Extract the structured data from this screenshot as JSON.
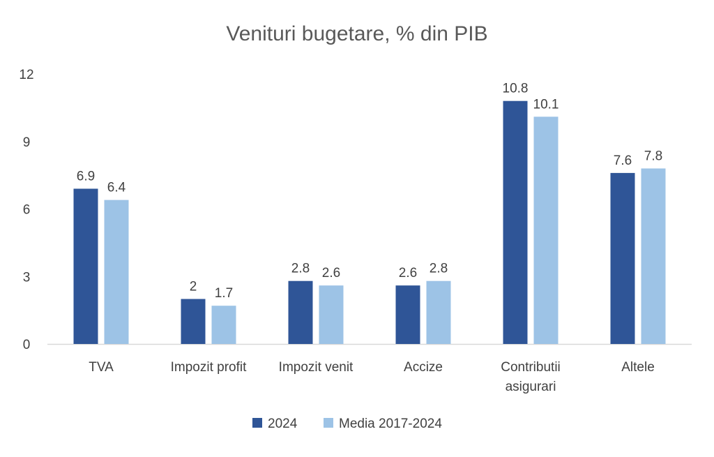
{
  "chart_data": {
    "type": "bar",
    "title": "Venituri bugetare, % din PIB",
    "categories": [
      [
        "TVA"
      ],
      [
        "Impozit profit"
      ],
      [
        "Impozit venit"
      ],
      [
        "Accize"
      ],
      [
        "Contributii",
        "asigurari"
      ],
      [
        "Altele"
      ]
    ],
    "series": [
      {
        "name": "2024",
        "color": "#2F5597",
        "values": [
          6.9,
          2,
          2.8,
          2.6,
          10.8,
          7.6
        ],
        "labels": [
          "6.9",
          "2",
          "2.8",
          "2.6",
          "10.8",
          "7.6"
        ]
      },
      {
        "name": "Media 2017-2024",
        "color": "#9DC3E6",
        "values": [
          6.4,
          1.7,
          2.6,
          2.8,
          10.1,
          7.8
        ],
        "labels": [
          "6.4",
          "1.7",
          "2.6",
          "2.8",
          "10.1",
          "7.8"
        ]
      }
    ],
    "ylim": [
      0,
      12
    ],
    "yticks": [
      0,
      3,
      6,
      9,
      12
    ],
    "grid": false,
    "legend_position": "bottom"
  }
}
